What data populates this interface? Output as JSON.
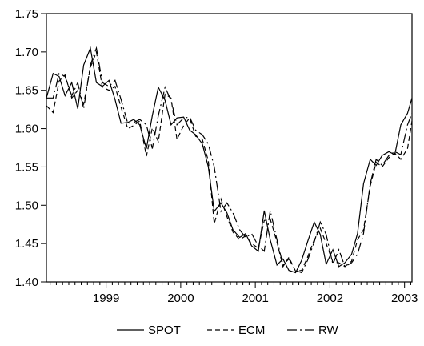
{
  "chart_data": {
    "type": "line",
    "title": "",
    "xlabel": "",
    "ylabel": "",
    "xlim": [
      1998.2,
      2003.1
    ],
    "ylim": [
      1.4,
      1.75
    ],
    "yticks": [
      "1.40",
      "1.45",
      "1.50",
      "1.55",
      "1.60",
      "1.65",
      "1.70",
      "1.75"
    ],
    "xticks": [
      {
        "label": "1999",
        "x": 1999.0
      },
      {
        "label": "2000",
        "x": 2000.0
      },
      {
        "label": "2001",
        "x": 2001.0
      },
      {
        "label": "2002",
        "x": 2002.0
      },
      {
        "label": "2003",
        "x": 2003.0
      }
    ],
    "grid": false,
    "legend_position": "bottom",
    "series": [
      {
        "name": "SPOT",
        "style": "solid",
        "x": [
          1998.2,
          1998.29,
          1998.37,
          1998.45,
          1998.54,
          1998.62,
          1998.7,
          1998.79,
          1998.87,
          1998.95,
          1999.04,
          1999.12,
          1999.2,
          1999.29,
          1999.37,
          1999.45,
          1999.54,
          1999.62,
          1999.7,
          1999.79,
          1999.87,
          1999.95,
          2000.04,
          2000.12,
          2000.2,
          2000.29,
          2000.37,
          2000.45,
          2000.54,
          2000.62,
          2000.7,
          2000.79,
          2000.87,
          2000.95,
          2001.04,
          2001.12,
          2001.2,
          2001.29,
          2001.37,
          2001.45,
          2001.54,
          2001.62,
          2001.7,
          2001.79,
          2001.87,
          2001.95,
          2002.04,
          2002.12,
          2002.2,
          2002.29,
          2002.37,
          2002.45,
          2002.54,
          2002.62,
          2002.7,
          2002.79,
          2002.87,
          2002.95,
          2003.04,
          2003.1
        ],
        "values": [
          1.64,
          1.672,
          1.668,
          1.643,
          1.66,
          1.626,
          1.683,
          1.705,
          1.66,
          1.655,
          1.663,
          1.638,
          1.607,
          1.608,
          1.612,
          1.605,
          1.574,
          1.617,
          1.654,
          1.637,
          1.605,
          1.614,
          1.615,
          1.598,
          1.592,
          1.58,
          1.55,
          1.492,
          1.503,
          1.49,
          1.468,
          1.458,
          1.463,
          1.447,
          1.44,
          1.493,
          1.455,
          1.422,
          1.43,
          1.415,
          1.412,
          1.428,
          1.452,
          1.478,
          1.462,
          1.423,
          1.442,
          1.42,
          1.425,
          1.436,
          1.463,
          1.528,
          1.56,
          1.552,
          1.565,
          1.57,
          1.566,
          1.605,
          1.62,
          1.64
        ]
      },
      {
        "name": "ECM",
        "style": "dashed",
        "x": [
          1998.2,
          1998.29,
          1998.37,
          1998.45,
          1998.54,
          1998.62,
          1998.7,
          1998.79,
          1998.87,
          1998.95,
          1999.04,
          1999.12,
          1999.2,
          1999.29,
          1999.37,
          1999.45,
          1999.54,
          1999.62,
          1999.7,
          1999.79,
          1999.87,
          1999.95,
          2000.04,
          2000.12,
          2000.2,
          2000.29,
          2000.37,
          2000.45,
          2000.54,
          2000.62,
          2000.7,
          2000.79,
          2000.87,
          2000.95,
          2001.04,
          2001.12,
          2001.2,
          2001.29,
          2001.37,
          2001.45,
          2001.54,
          2001.62,
          2001.7,
          2001.79,
          2001.87,
          2001.95,
          2002.04,
          2002.12,
          2002.2,
          2002.29,
          2002.37,
          2002.45,
          2002.54,
          2002.62,
          2002.7,
          2002.79,
          2002.87,
          2002.95,
          2003.04,
          2003.1
        ],
        "values": [
          1.63,
          1.621,
          1.662,
          1.67,
          1.64,
          1.65,
          1.632,
          1.68,
          1.7,
          1.654,
          1.65,
          1.655,
          1.628,
          1.6,
          1.604,
          1.61,
          1.564,
          1.601,
          1.583,
          1.645,
          1.64,
          1.586,
          1.604,
          1.614,
          1.59,
          1.586,
          1.558,
          1.476,
          1.508,
          1.485,
          1.465,
          1.455,
          1.46,
          1.45,
          1.444,
          1.48,
          1.482,
          1.452,
          1.42,
          1.432,
          1.414,
          1.415,
          1.432,
          1.455,
          1.47,
          1.45,
          1.426,
          1.425,
          1.42,
          1.427,
          1.455,
          1.468,
          1.525,
          1.556,
          1.55,
          1.562,
          1.568,
          1.56,
          1.574,
          1.61
        ]
      },
      {
        "name": "RW",
        "style": "dashdot",
        "x": [
          1998.2,
          1998.29,
          1998.37,
          1998.45,
          1998.54,
          1998.62,
          1998.7,
          1998.79,
          1998.87,
          1998.95,
          1999.04,
          1999.12,
          1999.2,
          1999.29,
          1999.37,
          1999.45,
          1999.54,
          1999.62,
          1999.7,
          1999.79,
          1999.87,
          1999.95,
          2000.04,
          2000.12,
          2000.2,
          2000.29,
          2000.37,
          2000.45,
          2000.54,
          2000.62,
          2000.7,
          2000.79,
          2000.87,
          2000.95,
          2001.04,
          2001.12,
          2001.2,
          2001.29,
          2001.37,
          2001.45,
          2001.54,
          2001.62,
          2001.7,
          2001.79,
          2001.87,
          2001.95,
          2002.04,
          2002.12,
          2002.2,
          2002.29,
          2002.37,
          2002.45,
          2002.54,
          2002.62,
          2002.7,
          2002.79,
          2002.87,
          2002.95,
          2003.04,
          2003.1
        ],
        "values": [
          1.64,
          1.64,
          1.672,
          1.668,
          1.643,
          1.66,
          1.626,
          1.683,
          1.705,
          1.66,
          1.655,
          1.663,
          1.638,
          1.607,
          1.608,
          1.612,
          1.605,
          1.574,
          1.617,
          1.654,
          1.637,
          1.605,
          1.614,
          1.615,
          1.598,
          1.592,
          1.58,
          1.55,
          1.492,
          1.503,
          1.49,
          1.468,
          1.458,
          1.463,
          1.447,
          1.44,
          1.493,
          1.455,
          1.422,
          1.43,
          1.415,
          1.412,
          1.428,
          1.452,
          1.478,
          1.462,
          1.423,
          1.442,
          1.42,
          1.425,
          1.436,
          1.463,
          1.528,
          1.56,
          1.552,
          1.565,
          1.57,
          1.566,
          1.605,
          1.62
        ]
      }
    ]
  }
}
